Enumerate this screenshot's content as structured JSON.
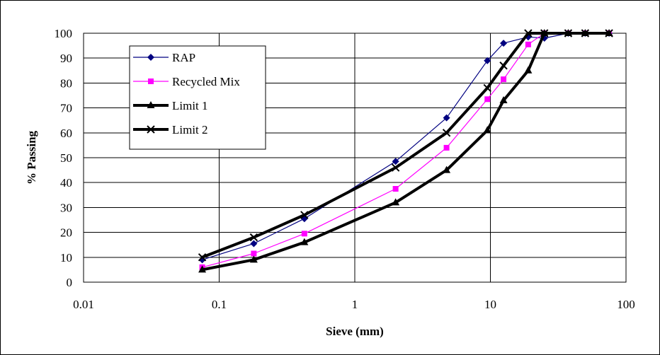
{
  "chart_data": {
    "type": "line",
    "xscale": "log",
    "xlim": [
      0.01,
      100
    ],
    "ylim": [
      0,
      100
    ],
    "grid": true,
    "legend_position": "top-left",
    "xlabel": "Sieve (mm)",
    "ylabel": "% Passing",
    "x_ticks": [
      "0.01",
      "0.1",
      "1",
      "10",
      "100"
    ],
    "y_ticks": [
      "0",
      "10",
      "20",
      "30",
      "40",
      "50",
      "60",
      "70",
      "80",
      "90",
      "100"
    ],
    "series": [
      {
        "name": "RAP",
        "color": "#000080",
        "marker": "diamond",
        "line": "thin",
        "x": [
          0.075,
          0.18,
          0.425,
          2.0,
          4.75,
          9.5,
          12.5,
          19,
          25,
          37.5,
          50,
          75
        ],
        "y": [
          9,
          15.5,
          25.5,
          48.5,
          66,
          89,
          96,
          98.5,
          98,
          100,
          100,
          100
        ]
      },
      {
        "name": "Recycled Mix",
        "color": "#ff00ff",
        "marker": "square",
        "line": "thin",
        "x": [
          0.075,
          0.18,
          0.425,
          2.0,
          4.75,
          9.5,
          12.5,
          19,
          25,
          37.5,
          50,
          75
        ],
        "y": [
          6,
          11.5,
          19.5,
          37.5,
          54,
          73.5,
          81.5,
          95.5,
          100,
          100,
          100,
          100
        ]
      },
      {
        "name": "Limit 1",
        "color": "#000000",
        "marker": "triangle",
        "line": "thick",
        "x": [
          0.075,
          0.18,
          0.425,
          2.0,
          4.75,
          9.5,
          12.5,
          19,
          25,
          37.5,
          50,
          75
        ],
        "y": [
          5,
          9,
          16,
          32,
          45,
          61,
          73,
          85,
          100,
          100,
          100,
          100
        ]
      },
      {
        "name": "Limit 2",
        "color": "#000000",
        "marker": "x",
        "line": "thick",
        "x": [
          0.075,
          0.18,
          0.425,
          2.0,
          4.75,
          9.5,
          12.5,
          19,
          25,
          37.5,
          50,
          75
        ],
        "y": [
          10,
          18,
          27,
          46,
          60,
          78,
          87,
          100,
          100,
          100,
          100,
          100
        ]
      }
    ]
  }
}
